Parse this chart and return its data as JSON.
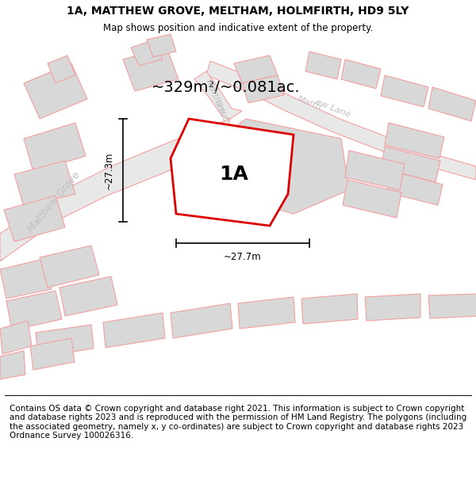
{
  "title": "1A, MATTHEW GROVE, MELTHAM, HOLMFIRTH, HD9 5LY",
  "subtitle": "Map shows position and indicative extent of the property.",
  "area_text": "~329m²/~0.081ac.",
  "label_1a": "1A",
  "dim_horiz": "~27.7m",
  "dim_vert": "~27.3m",
  "footer": "Contains OS data © Crown copyright and database right 2021. This information is subject to Crown copyright and database rights 2023 and is reproduced with the permission of HM Land Registry. The polygons (including the associated geometry, namely x, y co-ordinates) are subject to Crown copyright and database rights 2023 Ordnance Survey 100026316.",
  "map_bg": "#ffffff",
  "road_color": "#f4a0a0",
  "road_fill": "#e8e8e8",
  "highlight_color": "#dd0000",
  "highlight_fill": "#ffffff",
  "building_fill": "#d8d8d8",
  "building_edge": "#f4a0a0",
  "road_label_color": "#c0c0c0",
  "dim_color": "#000000",
  "area_fontsize": 14,
  "label_fontsize": 18,
  "title_fontsize": 10,
  "subtitle_fontsize": 8.5,
  "footer_fontsize": 7.5
}
